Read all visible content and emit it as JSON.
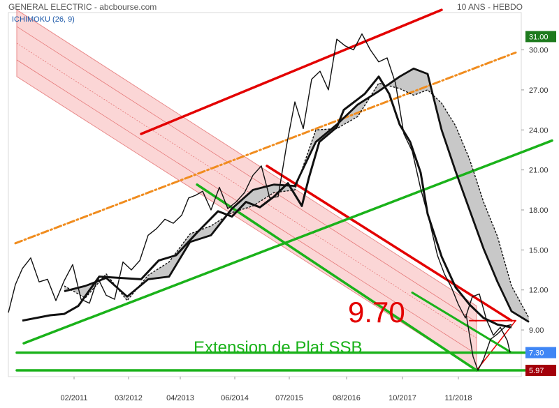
{
  "header": {
    "title": "GENERAL ELECTRIC - abcbourse.com",
    "period": "10 ANS - HEBDO",
    "indicator": "ICHIMOKU (26, 9)"
  },
  "chart_data": {
    "type": "line",
    "title": "GENERAL ELECTRIC - abcbourse.com",
    "subtitle": "10 ANS - HEBDO",
    "ylim": [
      5.5,
      32.8
    ],
    "y_ticks": [
      "9.00",
      "12.00",
      "15.00",
      "18.00",
      "21.00",
      "24.00",
      "27.00",
      "30.00"
    ],
    "x_ticks": [
      "02/2011",
      "03/2012",
      "04/2013",
      "06/2014",
      "07/2015",
      "08/2016",
      "10/2017",
      "11/2018"
    ],
    "price_labels": {
      "last": "31.00",
      "support_1": "7.30",
      "support_2": "5.97",
      "support_2_hidden": "5.97"
    },
    "price_label_colors": {
      "last": "#1d7a1d",
      "support_1": "#3f86f5",
      "support_2": "#a3000a"
    },
    "annotations": {
      "target": "9.70",
      "extension": "Extension de Plat SSB"
    },
    "colors": {
      "price": "#111111",
      "cloud": "#c8c8c8",
      "red_line": "#e30000",
      "green_line": "#1ab21a",
      "orange_line": "#f08c1e",
      "red_channel": "#f7b4b4"
    },
    "series": [
      {
        "role": "price",
        "x": [
          0,
          10,
          20,
          32,
          44,
          56,
          68,
          80,
          92,
          104,
          116,
          128,
          140,
          152,
          164,
          176,
          188,
          200,
          212,
          224,
          236,
          248,
          258,
          268,
          278,
          290,
          302,
          314,
          326,
          338,
          350,
          362,
          374,
          386,
          398,
          410,
          422,
          434,
          446,
          458,
          470,
          482,
          494,
          506,
          518,
          530,
          542,
          554,
          566,
          578,
          590,
          602,
          614,
          624,
          634,
          644,
          654,
          664,
          674,
          684,
          694,
          704,
          714,
          718
        ],
        "y": [
          10.3,
          12.4,
          13.6,
          14.4,
          12.6,
          12.8,
          11.2,
          12.7,
          13.9,
          11.3,
          11.0,
          12.9,
          11.6,
          11.3,
          14.1,
          13.5,
          14.2,
          16.1,
          16.6,
          17.3,
          17.0,
          17.6,
          18.9,
          19.1,
          19.4,
          18.0,
          19.7,
          18.1,
          18.6,
          19.3,
          20.6,
          21.3,
          18.9,
          19.0,
          22.8,
          26.1,
          24.1,
          27.8,
          28.4,
          27.0,
          30.8,
          30.3,
          30.0,
          31.2,
          30.0,
          29.1,
          29.4,
          27.5,
          23.7,
          22.4,
          19.6,
          17.3,
          14.6,
          13.2,
          12.2,
          10.9,
          9.9,
          11.5,
          11.7,
          9.8,
          8.6,
          9.2,
          8.2,
          7.3
        ]
      },
      {
        "role": "kijun",
        "x": [
          20,
          60,
          80,
          100,
          130,
          160,
          190,
          215,
          240,
          270,
          300,
          320,
          340,
          360,
          380,
          400,
          420,
          430,
          445,
          470,
          480,
          510,
          530,
          545,
          560,
          575,
          590,
          600,
          620,
          640,
          660,
          680,
          700,
          720
        ],
        "y": [
          9.7,
          10.1,
          10.2,
          10.8,
          13.0,
          12.9,
          12.8,
          14.2,
          14.6,
          16.3,
          17.9,
          17.5,
          18.6,
          18.2,
          19.0,
          20.0,
          18.3,
          20.4,
          23.1,
          24.2,
          25.5,
          26.7,
          28.0,
          26.7,
          24.4,
          23.1,
          20.8,
          17.7,
          14.5,
          12.2,
          10.9,
          9.9,
          9.4,
          9.2
        ]
      },
      {
        "role": "ssb",
        "x": [
          80,
          110,
          140,
          170,
          200,
          230,
          260,
          290,
          320,
          350,
          380,
          410,
          440,
          470,
          500,
          530,
          560,
          580,
          600,
          620,
          640,
          660,
          680,
          700,
          720,
          745
        ],
        "y": [
          11.9,
          12.3,
          12.9,
          11.5,
          12.8,
          13.0,
          15.6,
          16.1,
          18.1,
          19.5,
          19.9,
          19.8,
          23.1,
          24.4,
          25.9,
          26.9,
          28.0,
          28.6,
          28.2,
          24.0,
          20.9,
          18.0,
          15.1,
          12.6,
          10.4,
          9.6
        ]
      },
      {
        "role": "ssa",
        "x": [
          80,
          110,
          140,
          170,
          200,
          230,
          260,
          290,
          320,
          350,
          380,
          410,
          440,
          470,
          500,
          530,
          560,
          580,
          600,
          620,
          640,
          660,
          680,
          700,
          720,
          745
        ],
        "y": [
          12.3,
          11.4,
          13.2,
          11.2,
          13.1,
          14.1,
          16.2,
          16.8,
          17.8,
          18.3,
          19.3,
          19.5,
          24.0,
          24.1,
          25.0,
          27.5,
          27.1,
          26.6,
          27.0,
          26.0,
          24.3,
          21.8,
          18.6,
          16.0,
          12.3,
          9.9
        ]
      },
      {
        "role": "recent_low",
        "x": [
          655,
          665,
          672,
          680,
          690,
          700,
          712,
          720
        ],
        "y": [
          10.2,
          7.0,
          5.97,
          6.8,
          8.3,
          8.7,
          9.3,
          9.4
        ]
      }
    ],
    "lines": [
      {
        "role": "red_upper",
        "x": [
          190,
          620
        ],
        "y": [
          23.7,
          33.0
        ]
      },
      {
        "role": "red_lower",
        "x": [
          370,
          720
        ],
        "y": [
          21.3,
          9.7
        ]
      },
      {
        "role": "red_target",
        "x": [
          660,
          726
        ],
        "y": [
          9.7,
          9.7
        ]
      },
      {
        "role": "red_small",
        "x": [
          670,
          726
        ],
        "y": [
          5.97,
          9.7
        ]
      },
      {
        "role": "orange_dash",
        "x": [
          10,
          726
        ],
        "y": [
          15.5,
          29.8
        ]
      },
      {
        "role": "green_rising",
        "x": [
          22,
          778
        ],
        "y": [
          8.0,
          23.2
        ]
      },
      {
        "role": "green_fall_1",
        "x": [
          270,
          670
        ],
        "y": [
          19.9,
          5.97
        ]
      },
      {
        "role": "green_fall_2",
        "x": [
          578,
          720
        ],
        "y": [
          11.8,
          7.3
        ]
      },
      {
        "role": "green_support_1",
        "x": [
          12,
          745
        ],
        "y": [
          7.3,
          7.3
        ]
      },
      {
        "role": "green_support_2",
        "x": [
          12,
          745
        ],
        "y": [
          5.97,
          5.97
        ]
      }
    ],
    "channel": {
      "upper_x": [
        12,
        670
      ],
      "upper_y": [
        33.0,
        10.8
      ],
      "lower_x": [
        12,
        670
      ],
      "lower_y": [
        28.0,
        5.97
      ],
      "inner_offsets": [
        0.25,
        0.5,
        0.75
      ]
    }
  }
}
